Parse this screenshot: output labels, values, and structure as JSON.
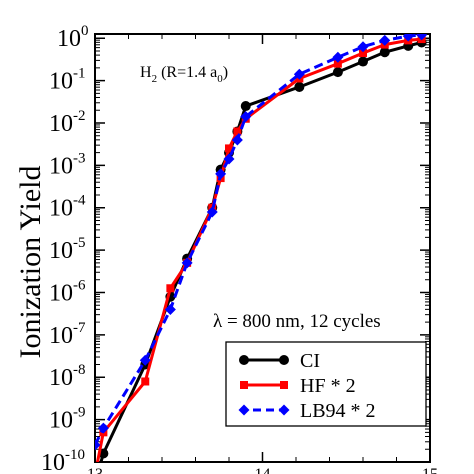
{
  "chart_data": {
    "type": "line",
    "title": "",
    "xlabel": "",
    "ylabel": "Ionization Yield",
    "xlim": [
      13,
      15
    ],
    "ylim_exponent": [
      -10,
      0.1
    ],
    "yscale": "log",
    "grid": false,
    "legend_placement": "bottom-right",
    "x_ticks": [
      "13",
      "14",
      "15"
    ],
    "y_ticks": [
      {
        "base": "10",
        "exp": "0",
        "value": 0
      },
      {
        "base": "10",
        "exp": "-1",
        "value": -1
      },
      {
        "base": "10",
        "exp": "-2",
        "value": -2
      },
      {
        "base": "10",
        "exp": "-3",
        "value": -3
      },
      {
        "base": "10",
        "exp": "-4",
        "value": -4
      },
      {
        "base": "10",
        "exp": "-5",
        "value": -5
      },
      {
        "base": "10",
        "exp": "-6",
        "value": -6
      },
      {
        "base": "10",
        "exp": "-7",
        "value": -7
      },
      {
        "base": "10",
        "exp": "-8",
        "value": -8
      },
      {
        "base": "10",
        "exp": "-9",
        "value": -9
      },
      {
        "base": "10",
        "exp": "-10",
        "value": -10
      }
    ],
    "annotations": {
      "molecule_main": "H",
      "molecule_sub": "2",
      "molecule_mid": " (R=1.4 a",
      "molecule_sub2": "0",
      "molecule_end": ")",
      "laser": "λ = 800 nm, 12 cycles"
    },
    "series": [
      {
        "name": "CI",
        "color": "#000000",
        "marker": "circle",
        "dash": "solid",
        "x": [
          13.0,
          13.05,
          13.3,
          13.45,
          13.55,
          13.7,
          13.75,
          13.8,
          13.85,
          13.9,
          14.22,
          14.45,
          14.6,
          14.73,
          14.87,
          14.95
        ],
        "y_exp": [
          -10.5,
          -9.8,
          -7.7,
          -6.1,
          -5.2,
          -4.0,
          -3.1,
          -2.7,
          -2.2,
          -1.6,
          -1.15,
          -0.8,
          -0.55,
          -0.33,
          -0.18,
          -0.1
        ]
      },
      {
        "name": "HF * 2",
        "color": "#ff0000",
        "marker": "square",
        "dash": "solid",
        "x": [
          13.0,
          13.05,
          13.3,
          13.45,
          13.55,
          13.7,
          13.75,
          13.8,
          13.85,
          13.9,
          14.22,
          14.45,
          14.6,
          14.73,
          14.87,
          14.95
        ],
        "y_exp": [
          -10.3,
          -9.3,
          -8.1,
          -5.9,
          -5.3,
          -4.0,
          -3.3,
          -2.6,
          -2.2,
          -1.9,
          -0.95,
          -0.6,
          -0.35,
          -0.15,
          -0.05,
          -0.02
        ]
      },
      {
        "name": "LB94 * 2",
        "color": "#0000ff",
        "marker": "diamond",
        "dash": "dashed",
        "x": [
          13.0,
          13.05,
          13.3,
          13.45,
          13.55,
          13.7,
          13.75,
          13.8,
          13.85,
          13.9,
          14.22,
          14.45,
          14.6,
          14.73,
          14.87,
          14.95
        ],
        "y_exp": [
          -9.6,
          -9.2,
          -7.6,
          -6.4,
          -5.3,
          -4.1,
          -3.2,
          -2.85,
          -2.4,
          -1.85,
          -0.85,
          -0.45,
          -0.2,
          -0.05,
          0.05,
          0.08
        ]
      }
    ]
  }
}
